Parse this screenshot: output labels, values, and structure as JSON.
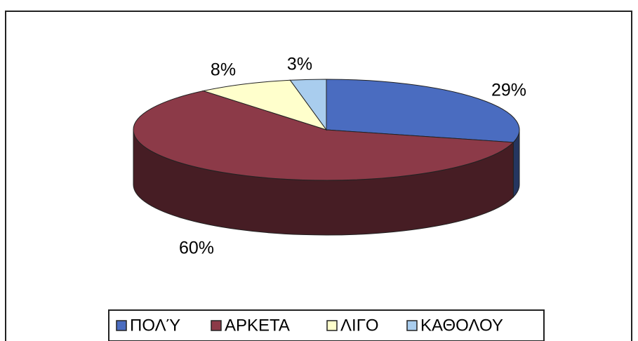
{
  "chart_data": {
    "type": "pie3d",
    "categories": [
      "ΠΟΛΎ",
      "ΑΡΚΕΤΑ",
      "ΛΙΓΟ",
      "ΚΑΘΟΛΟΥ"
    ],
    "values": [
      29,
      60,
      8,
      3
    ],
    "value_labels": [
      "29%",
      "60%",
      "8%",
      "3%"
    ],
    "colors": [
      "#4a6cc0",
      "#8c3a48",
      "#ffffcc",
      "#a9cdee"
    ],
    "legend": "bottom"
  }
}
